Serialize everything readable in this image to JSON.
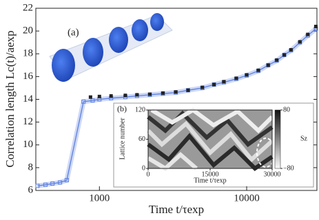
{
  "chart_data": {
    "type": "line",
    "xscale": "log",
    "xlabel": "Time t/τexp",
    "ylabel": "Correlation length Lc(t)/aexp",
    "panel_label": "(a)",
    "xlim": [
      370,
      30000
    ],
    "xticks": [
      1000,
      10000
    ],
    "ylim": [
      6,
      22
    ],
    "yticks": [
      6,
      8,
      10,
      12,
      14,
      16,
      18,
      20,
      22
    ],
    "series": [
      {
        "color": "#5b7fe0",
        "x": [
          380,
          430,
          480,
          540,
          600,
          780,
          900,
          1000,
          1200,
          1500,
          1800,
          2200,
          2700,
          3300,
          4000,
          5000,
          6000,
          7000,
          8500,
          10000,
          12000,
          14000,
          16000,
          18000,
          20000,
          23000,
          26000,
          29500
        ],
        "values": [
          6.4,
          6.5,
          6.6,
          6.7,
          6.9,
          13.8,
          13.9,
          14.0,
          14.1,
          14.2,
          14.3,
          14.4,
          14.5,
          14.6,
          14.8,
          15.0,
          15.3,
          15.5,
          15.8,
          16.1,
          16.5,
          17.0,
          17.4,
          17.9,
          18.3,
          19.0,
          19.6,
          20.2
        ]
      },
      {
        "color": "#222222",
        "x": [
          870,
          1000,
          1200,
          1500,
          1800,
          2200,
          2700,
          3300,
          4000,
          5000,
          6000,
          7000,
          8500,
          10000,
          12000,
          14000,
          16000,
          18000,
          20000,
          23000,
          26000,
          29500
        ],
        "values": [
          14.2,
          14.25,
          14.3,
          14.35,
          14.4,
          14.45,
          14.55,
          14.65,
          14.8,
          15.05,
          15.3,
          15.55,
          15.85,
          16.15,
          16.55,
          17.0,
          17.45,
          17.9,
          18.35,
          19.05,
          19.7,
          20.4
        ]
      }
    ],
    "inset": {
      "type": "heatmap",
      "panel_label": "(b)",
      "xlabel": "Time t/τexp",
      "ylabel": "Lattice number",
      "colorbar_label": "Sz",
      "xlim": [
        0,
        30000
      ],
      "xticks": [
        0,
        15000,
        30000
      ],
      "ylim": [
        0,
        120
      ],
      "yticks": [
        0,
        60,
        120
      ],
      "clim": [
        -80,
        80
      ],
      "cticks": [
        80,
        {
          "value": -80,
          "label": "−80"
        }
      ]
    }
  }
}
